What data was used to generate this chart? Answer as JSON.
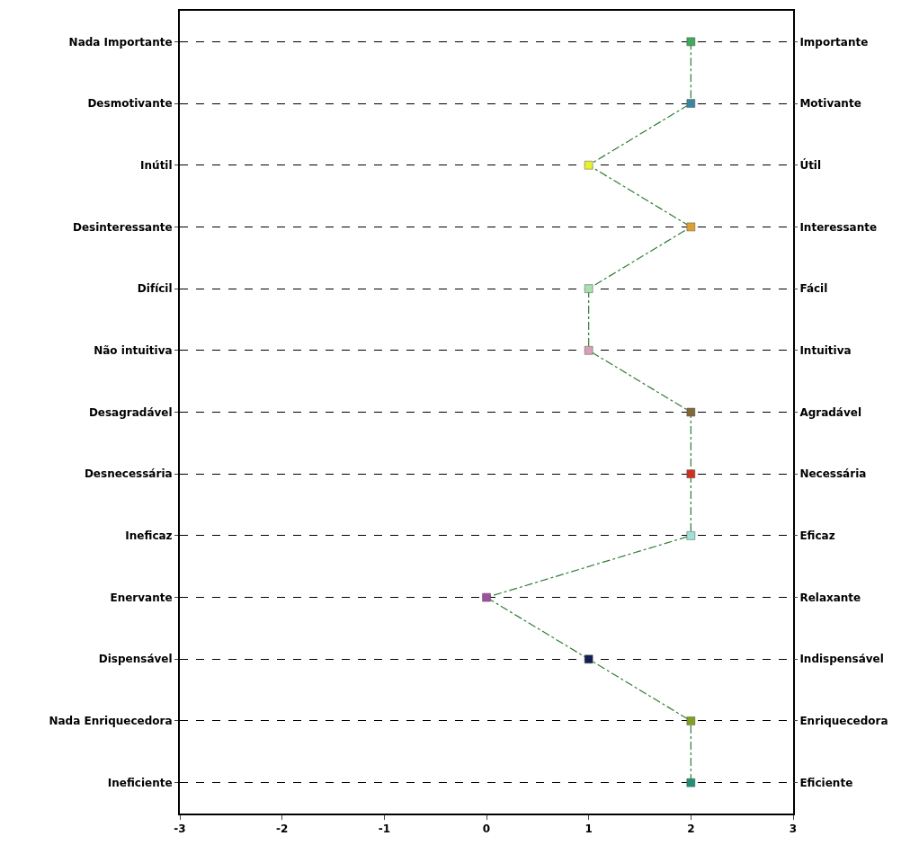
{
  "chart_data": {
    "type": "line",
    "orientation": "horizontal",
    "categories": [
      "Nada Importante",
      "Desmotivante",
      "Inútil",
      "Desinteressante",
      "Difícil",
      "Não intuitiva",
      "Desagradável",
      "Desnecessária",
      "Ineficaz",
      "Enervante",
      "Dispensável",
      "Nada Enriquecedora",
      "Ineficiente"
    ],
    "y2_categories": [
      "Importante",
      "Motivante",
      "Útil",
      "Interessante",
      "Fácil",
      "Intuitiva",
      "Agradável",
      "Necessária",
      "Eficaz",
      "Relaxante",
      "Indispensável",
      "Enriquecedora",
      "Eficiente"
    ],
    "series": [
      {
        "color": "#2e7d32",
        "values": [
          2,
          2,
          1,
          2,
          1,
          1,
          2,
          2,
          2,
          0,
          1,
          2,
          2
        ],
        "colors": [
          "#3daa5c",
          "#3a86a0",
          "#e8f030",
          "#e0a030",
          "#a8e0b0",
          "#d8a0b8",
          "#806838",
          "#d03020",
          "#a0e0d8",
          "#a050a0",
          "#102050",
          "#80a020",
          "#209078"
        ]
      }
    ],
    "xlim": [
      -3,
      3
    ],
    "xticks": [
      -3,
      -2,
      -1,
      0,
      1,
      2,
      3
    ],
    "grid": "y",
    "marker": "square",
    "line_style": "dashed"
  }
}
